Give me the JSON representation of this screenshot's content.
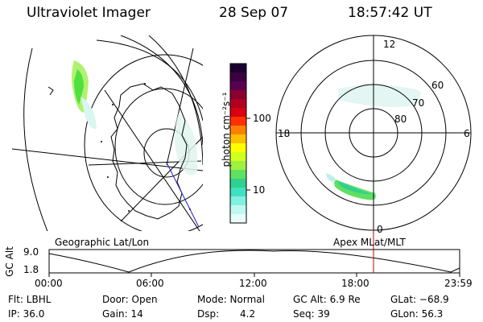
{
  "header": {
    "instrument": "Ultraviolet Imager",
    "date": "28 Sep 07",
    "time": "18:57:42 UT"
  },
  "colorbar": {
    "unit_label": "photon cm⁻²s⁻¹",
    "ticks": [
      "100",
      "10"
    ],
    "colors": [
      "#1a0030",
      "#3a0040",
      "#5a0050",
      "#8a0030",
      "#b00020",
      "#d80010",
      "#ff3000",
      "#ff8000",
      "#ffc000",
      "#ffff00",
      "#d0ff20",
      "#a0f040",
      "#60e060",
      "#30d090",
      "#40e0c0",
      "#80f0e0",
      "#c0f8f0",
      "#e8fcfa"
    ]
  },
  "left_panel": {
    "caption": "Geographic Lat/Lon"
  },
  "right_panel": {
    "caption": "Apex MLat/MLT",
    "mlt_labels": {
      "top": "12",
      "right": "6",
      "bottom": "0",
      "left": "18"
    },
    "lat_labels": [
      "60",
      "70",
      "80"
    ]
  },
  "altitude_plot": {
    "ylabel": "GC Alt",
    "yticks": [
      "9.0",
      "1.8"
    ],
    "xticks": [
      "00:00",
      "06:00",
      "12:00",
      "18:00",
      "23:59"
    ],
    "current_time_marker": "18:57"
  },
  "footer": {
    "flt": "Flt: LBHL",
    "door": "Door: Open",
    "mode": "Mode: Normal",
    "gc_alt": "GC Alt: 6.9 Re",
    "glat": "GLat: −68.9",
    "ip": "IP: 36.0",
    "gain": "Gain: 14",
    "dsp_label": "Dsp:",
    "dsp_value": "4.2",
    "seq": "Seq: 39",
    "glon": "GLon:  56.3"
  }
}
